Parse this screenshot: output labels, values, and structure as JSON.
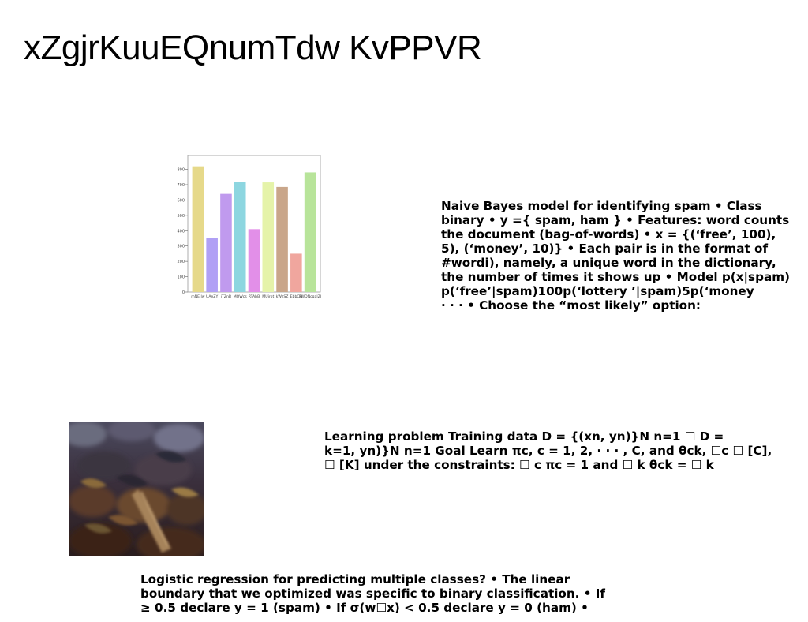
{
  "slide": {
    "title": "xZgjrKuuEQnumTdw KvPPVR"
  },
  "chart_data": {
    "type": "bar",
    "categories": [
      "mNE lw",
      "UAeZY",
      "jTZnB",
      "MOWcs",
      "RTAbB",
      "MUjrot",
      "kWzSZ",
      "EbbCH",
      "FWDNcgalZI"
    ],
    "values": [
      820,
      355,
      640,
      720,
      410,
      715,
      685,
      250,
      780
    ],
    "colors": [
      "#e6d98a",
      "#b0a0f5",
      "#c09aee",
      "#8dd6e0",
      "#e28fe8",
      "#e5f3a9",
      "#c9a68a",
      "#f0a69e",
      "#b8e49a"
    ],
    "y_ticks": [
      0,
      100,
      200,
      300,
      400,
      500,
      600,
      700,
      800
    ],
    "ylim": [
      0,
      880
    ]
  },
  "photo": {
    "icon": "dried-leaves-photo"
  },
  "text_blocks": [
    {
      "lines": [
        "Naive Bayes model for identifying spam • Class",
        "binary • y ={ spam, ham } • Features: word counts",
        "the document (bag-of-words) • x = {(‘free’, 100),",
        "5), (‘money’, 10)} • Each pair is in the format of",
        "#wordi), namely, a unique word in the dictionary,",
        "the number of times it shows up • Model p(x|spam)",
        "p(‘free’|spam)100p(‘lottery ’|spam)5p(‘money",
        "· · · • Choose the “most likely” option:"
      ]
    },
    {
      "lines": [
        "Learning problem Training data D = {(xn, yn)}N n=1 ☐ D =",
        "k=1, yn)}N n=1 Goal Learn πc, c = 1, 2, · · · , C, and θck, ☐c ☐ [C],",
        "☐ [K] under the constraints: ☐ c πc = 1 and ☐ k θck = ☐ k"
      ]
    },
    {
      "lines": [
        "Logistic regression for predicting multiple classes? • The linear",
        "boundary that we optimized was specific to binary classification. • If",
        "≥ 0.5 declare y = 1 (spam) • If σ(w☐x) < 0.5 declare y = 0 (ham) •"
      ]
    }
  ]
}
